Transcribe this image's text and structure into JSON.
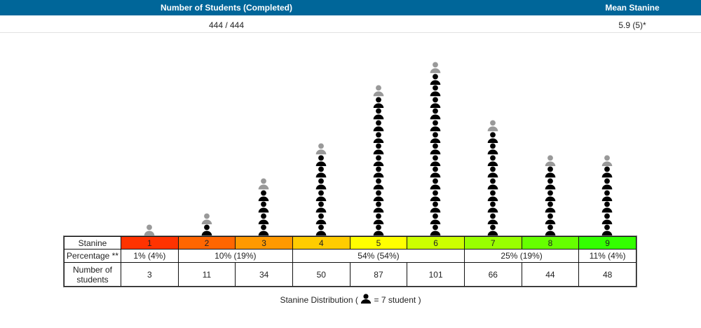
{
  "header": {
    "students_label": "Number of Students (Completed)",
    "mean_label": "Mean Stanine"
  },
  "summary": {
    "students_value": "444 / 444",
    "mean_value": "5.9 (5)*"
  },
  "chart_data": {
    "type": "pictograph",
    "title": "Stanine Distribution",
    "legend_prefix": "Stanine Distribution (",
    "legend_suffix": "= 7 student )",
    "students_per_icon": 7,
    "row_labels": {
      "stanine": "Stanine",
      "percentage": "Percentage **",
      "number": "Number of students"
    },
    "categories": [
      "1",
      "2",
      "3",
      "4",
      "5",
      "6",
      "7",
      "8",
      "9"
    ],
    "values": [
      3,
      11,
      34,
      50,
      87,
      101,
      66,
      44,
      48
    ],
    "colors": [
      "#ff3300",
      "#ff6600",
      "#ff9900",
      "#ffcc00",
      "#ffff00",
      "#ccff00",
      "#99ff00",
      "#66ff00",
      "#33ff00"
    ],
    "percentages": [
      {
        "label": "1% (4%)",
        "span": 1
      },
      {
        "label": "10% (19%)",
        "span": 2
      },
      {
        "label": "54% (54%)",
        "span": 3
      },
      {
        "label": "25% (19%)",
        "span": 2
      },
      {
        "label": "11% (4%)",
        "span": 1
      }
    ],
    "icon_colors": {
      "full": "#000000",
      "partial": "#999999"
    }
  }
}
